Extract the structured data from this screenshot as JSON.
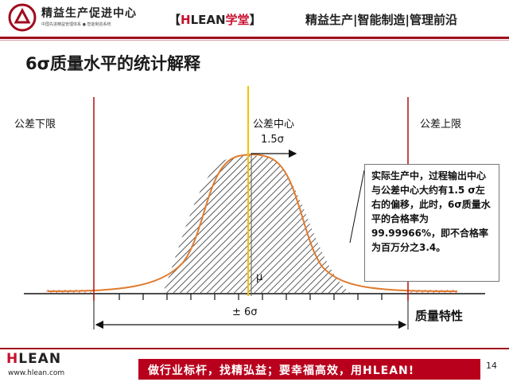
{
  "header": {
    "logo_title": "精益生产促进中心",
    "logo_subtitle": "中国先进精益管理体系 ● 智能制造系统",
    "brand_open": "【",
    "brand_h": "H",
    "brand_lean": "LEAN",
    "brand_xt": "学堂",
    "brand_close": "】",
    "slogan": "精益生产|智能制造|管理前沿"
  },
  "slide": {
    "title": "6σ质量水平的统计解释",
    "label_lower": "公差下限",
    "label_center": "公差中心",
    "label_upper": "公差上限",
    "label_shift": "1.5σ",
    "label_mu": "μ",
    "label_range": "± 6σ",
    "label_axis": "质量特性",
    "note": "实际生产中，过程输出中心与公差中心大约有1.5 σ左右的偏移，此时，6σ质量水平的合格率为99.99966%，即不合格率为百万分之3.4。"
  },
  "footer": {
    "logo_h": "H",
    "logo_rest": "LEAN",
    "url": "www.hlean.com",
    "motto": "做行业标杆，找精弘益；要幸福高效，用HLEAN!",
    "page": "14"
  },
  "colors": {
    "accent_red": "#a00c1c",
    "curve_orange": "#e07b2e",
    "center_line": "#f2c400"
  },
  "icons": [
    "logo-icon"
  ]
}
